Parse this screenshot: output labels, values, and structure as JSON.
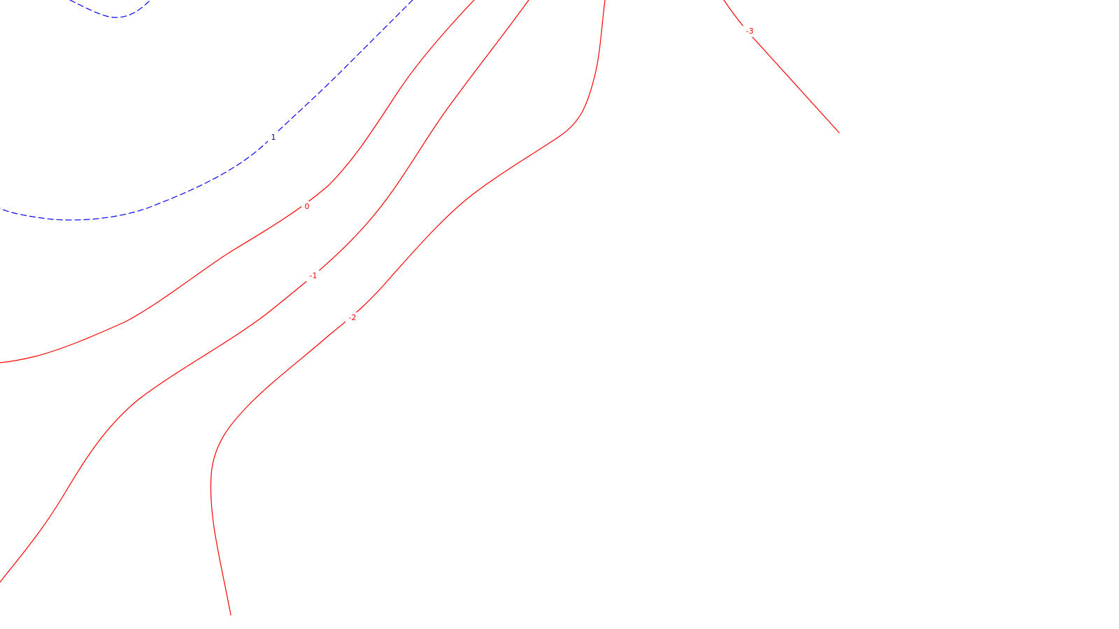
{
  "chart_data": {
    "type": "contour",
    "levels": [
      {
        "value": 1,
        "label": "1",
        "color": "#0000ff",
        "style": "dashed"
      },
      {
        "value": 0,
        "label": "0",
        "color": "#ff0000",
        "style": "solid"
      },
      {
        "value": -1,
        "label": "-1",
        "color": "#ff0000",
        "style": "solid"
      },
      {
        "value": -2,
        "label": "-2",
        "color": "#ff0000",
        "style": "solid"
      },
      {
        "value": -3,
        "label": "-3",
        "color": "#ff0000",
        "style": "solid"
      }
    ]
  }
}
